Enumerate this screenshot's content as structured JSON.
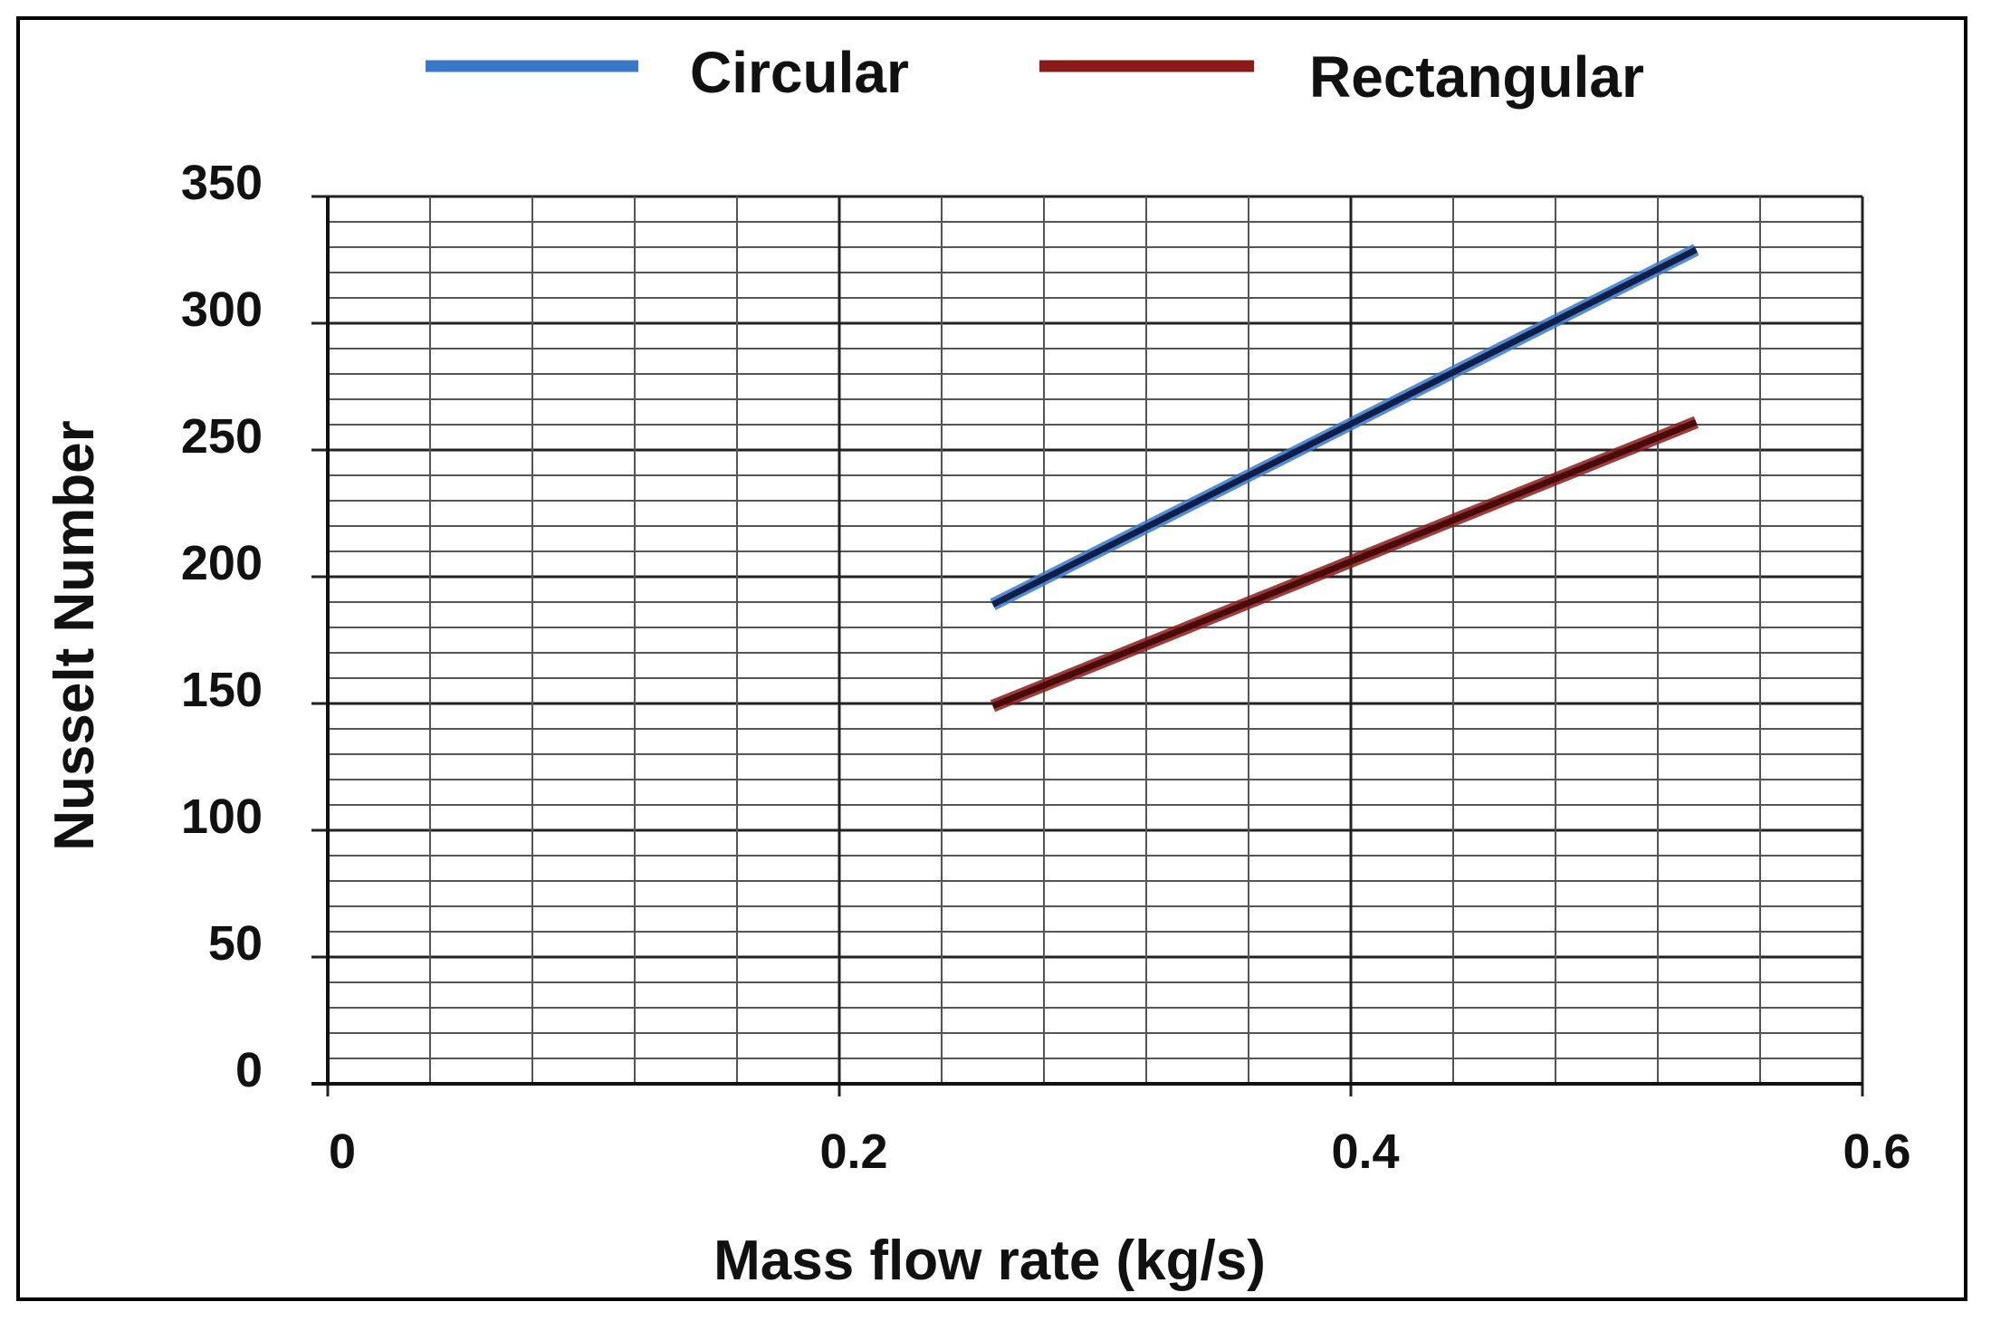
{
  "chart_data": {
    "type": "line",
    "title": "",
    "xlabel": "Mass flow rate (kg/s)",
    "ylabel": "Nusselt  Number",
    "xlim": [
      0,
      0.6
    ],
    "ylim": [
      0,
      350
    ],
    "x_ticks": [
      0,
      0.2,
      0.4,
      0.6
    ],
    "x_tick_labels": [
      "0",
      "0.2",
      "0.4",
      "0.6"
    ],
    "y_ticks": [
      0,
      50,
      100,
      150,
      200,
      250,
      300,
      350
    ],
    "y_tick_labels": [
      "0",
      "50",
      "100",
      "150",
      "200",
      "250",
      "300",
      "350"
    ],
    "grid": true,
    "legend_position": "top",
    "series": [
      {
        "name": "Circular",
        "color": "#3a78c8",
        "x": [
          0.26,
          0.535
        ],
        "values": [
          189,
          329
        ]
      },
      {
        "name": "Rectangular",
        "color": "#8b1a1a",
        "x": [
          0.26,
          0.535
        ],
        "values": [
          149,
          261
        ]
      }
    ]
  }
}
